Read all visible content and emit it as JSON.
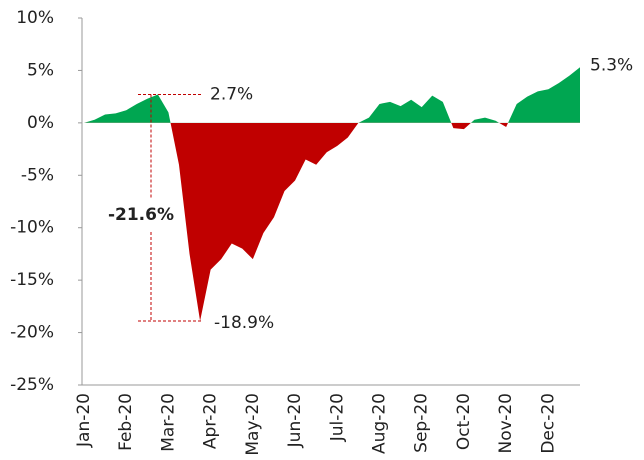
{
  "chart_data": {
    "type": "area",
    "positive_color": "#00a651",
    "negative_color": "#c00000",
    "annotation_color": "#c00000",
    "categories": [
      "Jan-20",
      null,
      null,
      null,
      "Feb-20",
      null,
      null,
      null,
      "Mar-20",
      null,
      null,
      null,
      "Apr-20",
      null,
      null,
      null,
      "May-20",
      null,
      null,
      null,
      "Jun-20",
      null,
      null,
      null,
      "Jul-20",
      null,
      null,
      null,
      "Aug-20",
      null,
      null,
      null,
      "Sep-20",
      null,
      null,
      null,
      "Oct-20",
      null,
      null,
      null,
      "Nov-20",
      null,
      null,
      null,
      "Dec-20",
      null,
      null,
      null
    ],
    "values": [
      0,
      0.3,
      0.8,
      0.9,
      1.2,
      1.8,
      2.3,
      2.7,
      1.0,
      -4.0,
      -12.5,
      -18.9,
      -14.0,
      -13.0,
      -11.5,
      -12.0,
      -13.0,
      -10.5,
      -9.0,
      -6.5,
      -5.5,
      -3.5,
      -4.0,
      -2.8,
      -2.2,
      -1.4,
      0.0,
      0.5,
      1.8,
      2.0,
      1.6,
      2.2,
      1.5,
      2.6,
      2.0,
      -0.5,
      -0.6,
      0.3,
      0.5,
      0.2,
      -0.4,
      1.8,
      2.5,
      3.0,
      3.2,
      3.8,
      4.5,
      5.3
    ],
    "ylim": [
      -25,
      10
    ],
    "yticks": [
      {
        "value": -25,
        "label": "-25%"
      },
      {
        "value": -20,
        "label": "-20%"
      },
      {
        "value": -15,
        "label": "-15%"
      },
      {
        "value": -10,
        "label": "-10%"
      },
      {
        "value": -5,
        "label": "-5%"
      },
      {
        "value": 0,
        "label": "0%"
      },
      {
        "value": 5,
        "label": "5%"
      },
      {
        "value": 10,
        "label": "10%"
      }
    ],
    "annotations": {
      "peak": {
        "text": "2.7%",
        "value": 2.7
      },
      "trough": {
        "text": "-18.9%",
        "value": -18.9
      },
      "drawdown": {
        "text": "-21.6%",
        "value": -21.6
      },
      "last": {
        "text": "5.3%",
        "value": 5.3
      }
    }
  }
}
